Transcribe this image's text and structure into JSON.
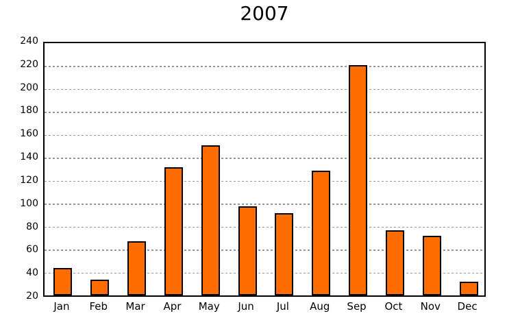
{
  "title": "2007",
  "colors": {
    "bar_fill": "#ff6d00",
    "bar_border": "#000000",
    "frame": "#000000",
    "gridline": "#969696",
    "background": "#ffffff",
    "text": "#000000"
  },
  "chart_data": {
    "type": "bar",
    "title": "2007",
    "categories": [
      "Jan",
      "Feb",
      "Mar",
      "Apr",
      "May",
      "Jun",
      "Jul",
      "Aug",
      "Sep",
      "Oct",
      "Nov",
      "Dec"
    ],
    "values": [
      44,
      34,
      67,
      132,
      151,
      98,
      92,
      129,
      221,
      77,
      72,
      32
    ],
    "xlabel": "",
    "ylabel": "",
    "ylim": [
      20,
      240
    ],
    "ytick_step": 20,
    "yticks": [
      20,
      40,
      60,
      80,
      100,
      120,
      140,
      160,
      180,
      200,
      220,
      240
    ],
    "grid": "horizontal-dotted",
    "legend": "none",
    "bar_color": "#ff6d00"
  }
}
